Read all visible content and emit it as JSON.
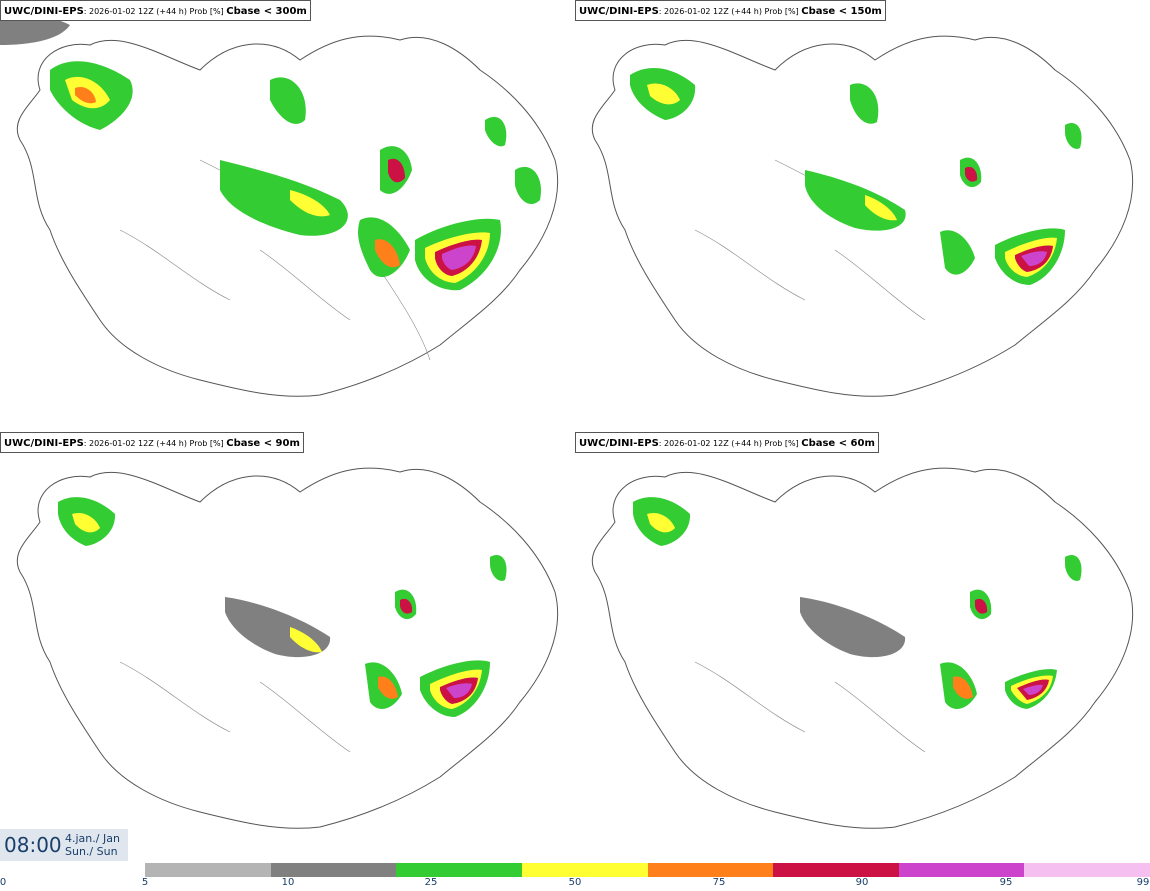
{
  "panels": [
    {
      "model": "UWC/DINI-EPS",
      "meta": ": 2026-01-02 12Z (+44 h) Prob [%] ",
      "variable": "Cbase < 300m"
    },
    {
      "model": "UWC/DINI-EPS",
      "meta": ": 2026-01-02 12Z (+44 h) Prob [%] ",
      "variable": "Cbase < 150m"
    },
    {
      "model": "UWC/DINI-EPS",
      "meta": ": 2026-01-02 12Z (+44 h) Prob [%] ",
      "variable": "Cbase < 90m"
    },
    {
      "model": "UWC/DINI-EPS",
      "meta": ": 2026-01-02 12Z (+44 h) Prob [%] ",
      "variable": "Cbase < 60m"
    }
  ],
  "valid_time": {
    "time": "08:00",
    "date": "4.jan./ Jan",
    "day": "Sun./ Sun"
  },
  "colorbar": {
    "ticks": [
      "0",
      "5",
      "10",
      "25",
      "50",
      "75",
      "90",
      "95",
      "99"
    ],
    "colors": [
      "#b4b4b4",
      "#808080",
      "#33cc33",
      "#ffff33",
      "#ff7f1a",
      "#cc1144",
      "#cc44cc",
      "#f5bff0"
    ]
  }
}
